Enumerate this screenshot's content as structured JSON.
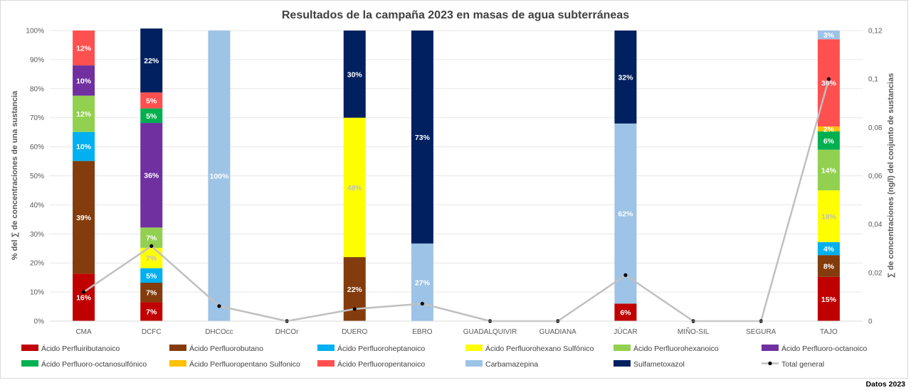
{
  "footer_note": "Datos 2023",
  "chart_data": {
    "type": "bar",
    "stacked": true,
    "title": "Resultados de la campaña 2023 en masas de agua subterráneas",
    "ylabel": "%  del ∑ de concentraciones de una sustancia",
    "y2label": "∑ de concentraciones (ng/l) del conjunto de sustancias",
    "ylim": [
      0,
      100
    ],
    "y2lim": [
      0,
      0.12
    ],
    "yticks": [
      "0%",
      "10%",
      "20%",
      "30%",
      "40%",
      "50%",
      "60%",
      "70%",
      "80%",
      "90%",
      "100%"
    ],
    "y2ticks": [
      "0",
      "0,02",
      "0,04",
      "0,06",
      "0,08",
      "0,1",
      "0,12"
    ],
    "legend_position": "bottom",
    "categories": [
      "CMA",
      "DCFC",
      "DHCOcc",
      "DHCOr",
      "DUERO",
      "EBRO",
      "GUADALQUIVIR",
      "GUADIANA",
      "JÚCAR",
      "MIÑO-SIL",
      "SEGURA",
      "TAJO"
    ],
    "series": [
      {
        "name": "Ácido Perfluiributanoico",
        "color": "#c00000",
        "label_color": "#ffffff",
        "values": [
          16.3,
          6.5,
          0,
          0,
          0,
          0,
          0,
          0,
          6,
          0,
          0,
          15.2
        ],
        "labels": [
          "16%",
          "7%",
          "",
          "",
          "",
          "",
          "",
          "",
          "6%",
          "",
          "",
          "15%"
        ]
      },
      {
        "name": "Ácido Perfluorobutano",
        "color": "#843c0c",
        "label_color": "#ffffff",
        "values": [
          38.8,
          6.7,
          0,
          0,
          22,
          0,
          0,
          0,
          0,
          0,
          0,
          7.5
        ],
        "labels": [
          "39%",
          "7%",
          "",
          "",
          "22%",
          "",
          "",
          "",
          "",
          "",
          "",
          "8%"
        ]
      },
      {
        "name": "Ácido Perfluoroheptanoico",
        "color": "#00b0f0",
        "label_color": "#ffffff",
        "values": [
          10,
          5,
          0,
          0,
          0,
          0,
          0,
          0,
          0,
          0,
          0,
          4.5
        ],
        "labels": [
          "10%",
          "5%",
          "",
          "",
          "",
          "",
          "",
          "",
          "",
          "",
          "",
          "4%"
        ]
      },
      {
        "name": "Ácido Perfluorohexano Sulfónico",
        "color": "#ffff00",
        "label_color": "#bfbfbf",
        "values": [
          0,
          7,
          0,
          0,
          48,
          0,
          0,
          0,
          0,
          0,
          0,
          17.8
        ],
        "labels": [
          "",
          "7%",
          "",
          "",
          "48%",
          "",
          "",
          "",
          "",
          "",
          "",
          "18%"
        ]
      },
      {
        "name": "Ácido Perfluorohexanoico",
        "color": "#92d050",
        "label_color": "#ffffff",
        "values": [
          12.5,
          7,
          0,
          0,
          0,
          0,
          0,
          0,
          0,
          0,
          0,
          14
        ],
        "labels": [
          "12%",
          "7%",
          "",
          "",
          "",
          "",
          "",
          "",
          "",
          "",
          "",
          "14%"
        ]
      },
      {
        "name": "Ácido Perfluoro-octanoico",
        "color": "#7030a0",
        "label_color": "#ffffff",
        "values": [
          10.4,
          36,
          0,
          0,
          0,
          0,
          0,
          0,
          0,
          0,
          0,
          0
        ],
        "labels": [
          "10%",
          "36%",
          "",
          "",
          "",
          "",
          "",
          "",
          "",
          "",
          "",
          ""
        ]
      },
      {
        "name": "Ácido Perfluoro-octanosulfónico",
        "color": "#00b050",
        "label_color": "#ffffff",
        "values": [
          0,
          5,
          0,
          0,
          0,
          0,
          0,
          0,
          0,
          0,
          0,
          6.3
        ],
        "labels": [
          "",
          "5%",
          "",
          "",
          "",
          "",
          "",
          "",
          "",
          "",
          "",
          "6%"
        ]
      },
      {
        "name": "Ácido Perfluoropentano Sulfonico",
        "color": "#ffc000",
        "label_color": "#ffffff",
        "values": [
          0,
          0,
          0,
          0,
          0,
          0,
          0,
          0,
          0,
          0,
          0,
          1.7
        ],
        "labels": [
          "",
          "",
          "",
          "",
          "",
          "",
          "",
          "",
          "",
          "",
          "",
          "2%"
        ]
      },
      {
        "name": "Ácido Perfluoropentanoico",
        "color": "#ff5050",
        "label_color": "#ffffff",
        "values": [
          12,
          5.5,
          0,
          0,
          0,
          0,
          0,
          0,
          0,
          0,
          0,
          30
        ],
        "labels": [
          "12%",
          "5%",
          "",
          "",
          "",
          "",
          "",
          "",
          "",
          "",
          "",
          "30%"
        ]
      },
      {
        "name": "Carbamazepina",
        "color": "#9dc3e6",
        "label_color": "#ffffff",
        "values": [
          0,
          0,
          100,
          0,
          0,
          26.7,
          0,
          0,
          62,
          0,
          0,
          3
        ],
        "labels": [
          "",
          "",
          "100%",
          "",
          "",
          "27%",
          "",
          "",
          "62%",
          "",
          "",
          "3%"
        ]
      },
      {
        "name": "Sulfametoxazol",
        "color": "#002060",
        "label_color": "#ffffff",
        "values": [
          0,
          22,
          0,
          0,
          30,
          73.3,
          0,
          0,
          32,
          0,
          0,
          0
        ],
        "labels": [
          "",
          "22%",
          "",
          "",
          "30%",
          "73%",
          "",
          "",
          "32%",
          "",
          "",
          ""
        ]
      }
    ],
    "line_series": {
      "name": "Total general",
      "axis": "secondary",
      "color": "#c0c0c0",
      "marker_color": "#000000",
      "values": [
        0.012,
        0.031,
        0.0062,
        0,
        0.005,
        0.0072,
        0,
        0,
        0.019,
        0,
        0,
        0.1
      ]
    }
  }
}
